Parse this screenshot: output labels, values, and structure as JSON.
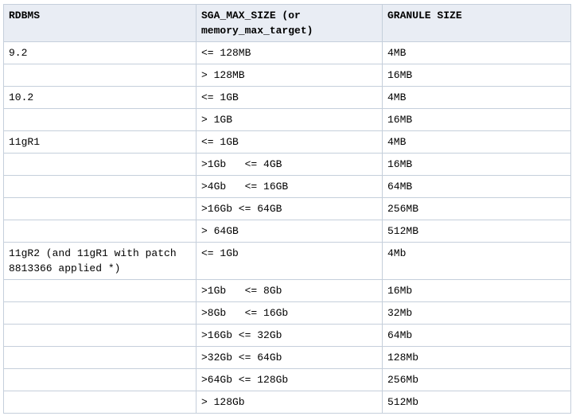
{
  "colors": {
    "page_background": "#ffffff",
    "header_background": "#e9edf4",
    "border_inner": "#c5cfdb",
    "border_outer": "#a9bcd6",
    "text": "#000000"
  },
  "table": {
    "headers": {
      "rdbms": "RDBMS",
      "sga": "SGA_MAX_SIZE (or memory_max_target)",
      "granule": "GRANULE SIZE"
    },
    "rows": [
      {
        "rdbms": "9.2",
        "sga": "<= 128MB",
        "granule": "4MB"
      },
      {
        "rdbms": "",
        "sga": "> 128MB",
        "granule": "16MB"
      },
      {
        "rdbms": "10.2",
        "sga": "<= 1GB",
        "granule": "4MB"
      },
      {
        "rdbms": "",
        "sga": "> 1GB",
        "granule": "16MB"
      },
      {
        "rdbms": "11gR1",
        "sga": "<= 1GB",
        "granule": "4MB"
      },
      {
        "rdbms": "",
        "sga": ">1Gb   <= 4GB",
        "granule": "16MB"
      },
      {
        "rdbms": "",
        "sga": ">4Gb   <= 16GB",
        "granule": "64MB"
      },
      {
        "rdbms": "",
        "sga": ">16Gb <= 64GB",
        "granule": "256MB"
      },
      {
        "rdbms": "",
        "sga": "> 64GB",
        "granule": "512MB"
      },
      {
        "rdbms": "11gR2 (and 11gR1 with patch 8813366 applied *)",
        "sga": "<= 1Gb",
        "granule": "4Mb"
      },
      {
        "rdbms": "",
        "sga": ">1Gb   <= 8Gb",
        "granule": "16Mb"
      },
      {
        "rdbms": "",
        "sga": ">8Gb   <= 16Gb",
        "granule": "32Mb"
      },
      {
        "rdbms": "",
        "sga": ">16Gb <= 32Gb",
        "granule": "64Mb"
      },
      {
        "rdbms": "",
        "sga": ">32Gb <= 64Gb",
        "granule": "128Mb"
      },
      {
        "rdbms": "",
        "sga": ">64Gb <= 128Gb",
        "granule": "256Mb"
      },
      {
        "rdbms": "",
        "sga": "> 128Gb",
        "granule": "512Mb"
      }
    ]
  }
}
